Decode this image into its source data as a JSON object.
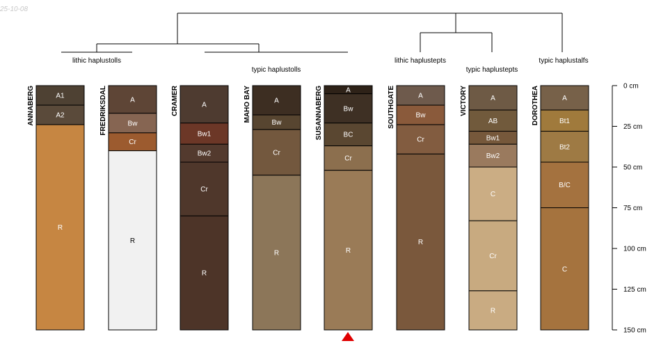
{
  "date_stamp": "25-10-08",
  "tree_labels": [
    {
      "id": "lithic_haplustolls",
      "text": "lithic haplustolls"
    },
    {
      "id": "typic_haplustolls",
      "text": "typic haplustolls"
    },
    {
      "id": "lithic_haplustepts",
      "text": "lithic haplustepts"
    },
    {
      "id": "typic_haplustepts",
      "text": "typic haplustepts"
    },
    {
      "id": "typic_haplustalfs",
      "text": "typic haplustalfs"
    }
  ],
  "depth_axis": {
    "max_cm": 150,
    "ticks": [
      {
        "v": 0,
        "label": "0 cm"
      },
      {
        "v": 25,
        "label": "25 cm"
      },
      {
        "v": 50,
        "label": "50 cm"
      },
      {
        "v": 75,
        "label": "75 cm"
      },
      {
        "v": 100,
        "label": "100 cm"
      },
      {
        "v": 125,
        "label": "125 cm"
      },
      {
        "v": 150,
        "label": "150 cm"
      }
    ]
  },
  "marker": {
    "profile": "SUSANNABERG",
    "color": "#e00000"
  },
  "profiles": [
    {
      "name": "ANNABERG",
      "horizons": [
        {
          "label": "A1",
          "top": 0,
          "bottom": 12,
          "color": "#4e4133"
        },
        {
          "label": "A2",
          "top": 12,
          "bottom": 24,
          "color": "#5a4a3a"
        },
        {
          "label": "R",
          "top": 24,
          "bottom": 150,
          "color": "#c68642"
        }
      ]
    },
    {
      "name": "FREDRIKSDAL",
      "horizons": [
        {
          "label": "A",
          "top": 0,
          "bottom": 17,
          "color": "#5e4536"
        },
        {
          "label": "Bw",
          "top": 17,
          "bottom": 29,
          "color": "#866552"
        },
        {
          "label": "Cr",
          "top": 29,
          "bottom": 40,
          "color": "#9c5b2f"
        },
        {
          "label": "R",
          "top": 40,
          "bottom": 150,
          "color": "#f1f1f1"
        }
      ]
    },
    {
      "name": "CRAMER",
      "horizons": [
        {
          "label": "A",
          "top": 0,
          "bottom": 23,
          "color": "#4e3b30"
        },
        {
          "label": "Bw1",
          "top": 23,
          "bottom": 36,
          "color": "#6c3727"
        },
        {
          "label": "Bw2",
          "top": 36,
          "bottom": 47,
          "color": "#533a2e"
        },
        {
          "label": "Cr",
          "top": 47,
          "bottom": 80,
          "color": "#4f372b"
        },
        {
          "label": "R",
          "top": 80,
          "bottom": 150,
          "color": "#4d3428"
        }
      ]
    },
    {
      "name": "MAHO BAY",
      "horizons": [
        {
          "label": "A",
          "top": 0,
          "bottom": 18,
          "color": "#3d2e22"
        },
        {
          "label": "Bw",
          "top": 18,
          "bottom": 27,
          "color": "#574530"
        },
        {
          "label": "Cr",
          "top": 27,
          "bottom": 55,
          "color": "#73583e"
        },
        {
          "label": "R",
          "top": 55,
          "bottom": 150,
          "color": "#8c7659"
        }
      ]
    },
    {
      "name": "SUSANNABERG",
      "horizons": [
        {
          "label": "A",
          "top": 0,
          "bottom": 5,
          "color": "#2e2218"
        },
        {
          "label": "Bw",
          "top": 5,
          "bottom": 23,
          "color": "#3e3024"
        },
        {
          "label": "BC",
          "top": 23,
          "bottom": 37,
          "color": "#5a4731"
        },
        {
          "label": "Cr",
          "top": 37,
          "bottom": 52,
          "color": "#8c6f4e"
        },
        {
          "label": "R",
          "top": 52,
          "bottom": 150,
          "color": "#9a7b57"
        }
      ]
    },
    {
      "name": "SOUTHGATE",
      "horizons": [
        {
          "label": "A",
          "top": 0,
          "bottom": 12,
          "color": "#6e5a4c"
        },
        {
          "label": "Bw",
          "top": 12,
          "bottom": 24,
          "color": "#8a5a3b"
        },
        {
          "label": "Cr",
          "top": 24,
          "bottom": 42,
          "color": "#825c40"
        },
        {
          "label": "R",
          "top": 42,
          "bottom": 150,
          "color": "#7a583c"
        }
      ]
    },
    {
      "name": "VICTORY",
      "horizons": [
        {
          "label": "A",
          "top": 0,
          "bottom": 15,
          "color": "#6e5a45"
        },
        {
          "label": "AB",
          "top": 15,
          "bottom": 28,
          "color": "#715a3c"
        },
        {
          "label": "Bw1",
          "top": 28,
          "bottom": 36,
          "color": "#76583b"
        },
        {
          "label": "Bw2",
          "top": 36,
          "bottom": 50,
          "color": "#9a7a5e"
        },
        {
          "label": "C",
          "top": 50,
          "bottom": 83,
          "color": "#cbad84"
        },
        {
          "label": "Cr",
          "top": 83,
          "bottom": 126,
          "color": "#c8aa80"
        },
        {
          "label": "R",
          "top": 126,
          "bottom": 150,
          "color": "#c9ab82"
        }
      ]
    },
    {
      "name": "DOROTHEA",
      "horizons": [
        {
          "label": "A",
          "top": 0,
          "bottom": 15,
          "color": "#776149"
        },
        {
          "label": "Bt1",
          "top": 15,
          "bottom": 28,
          "color": "#a07a3c"
        },
        {
          "label": "Bt2",
          "top": 28,
          "bottom": 47,
          "color": "#9e7a44"
        },
        {
          "label": "B/C",
          "top": 47,
          "bottom": 75,
          "color": "#a4723f"
        },
        {
          "label": "C",
          "top": 75,
          "bottom": 150,
          "color": "#a5733e"
        }
      ]
    }
  ]
}
